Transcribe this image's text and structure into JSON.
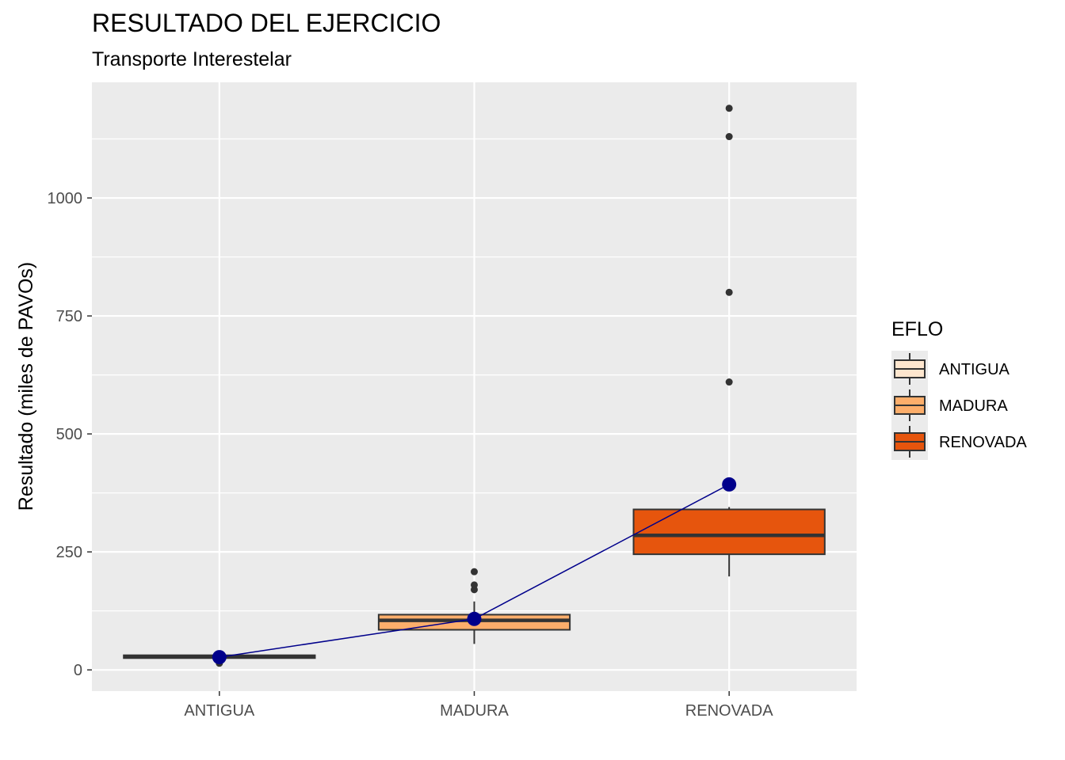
{
  "chart_data": {
    "type": "boxplot",
    "title": "RESULTADO DEL EJERCICIO",
    "subtitle": "Transporte Interestelar",
    "xlabel": "",
    "ylabel": "Resultado (miles de PAVOs)",
    "ylim": [
      -45,
      1245
    ],
    "yticks": [
      0,
      250,
      500,
      750,
      1000
    ],
    "ytick_labels": [
      "0",
      "250",
      "500",
      "750",
      "1000"
    ],
    "grid": true,
    "categories": [
      "ANTIGUA",
      "MADURA",
      "RENOVADA"
    ],
    "boxes": [
      {
        "category": "ANTIGUA",
        "q1": 25,
        "median": 28,
        "q3": 31,
        "whisker_low": 22,
        "whisker_high": 33,
        "outliers": [
          14,
          18,
          33
        ],
        "fill": "#fee6ce"
      },
      {
        "category": "MADURA",
        "q1": 85,
        "median": 105,
        "q3": 117,
        "whisker_low": 55,
        "whisker_high": 145,
        "outliers": [
          170,
          180,
          208
        ],
        "fill": "#fdae6b"
      },
      {
        "category": "RENOVADA",
        "q1": 245,
        "median": 285,
        "q3": 340,
        "whisker_low": 198,
        "whisker_high": 345,
        "outliers": [
          610,
          800,
          1130,
          1190
        ],
        "fill": "#e6550d"
      }
    ],
    "mean_line": {
      "values": [
        27,
        108,
        393
      ],
      "color": "#00008b"
    },
    "legend": {
      "title": "EFLO",
      "position": "right",
      "entries": [
        {
          "label": "ANTIGUA",
          "color": "#fee6ce"
        },
        {
          "label": "MADURA",
          "color": "#fdae6b"
        },
        {
          "label": "RENOVADA",
          "color": "#e6550d"
        }
      ]
    },
    "colors": {
      "panel_background": "#ebebeb",
      "grid": "#ffffff",
      "box_outline": "#333333",
      "outlier": "#333333"
    }
  }
}
